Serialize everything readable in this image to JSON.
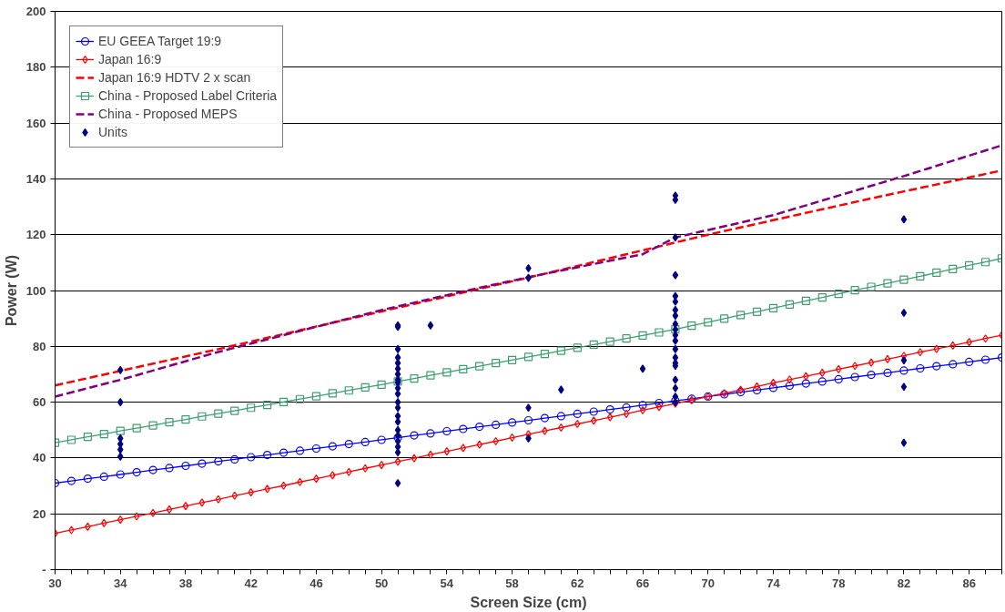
{
  "chart_data": {
    "type": "line",
    "xlabel": "Screen Size (cm)",
    "ylabel": "Power (W)",
    "xlim": [
      30,
      88
    ],
    "ylim": [
      0,
      200
    ],
    "xticks": [
      30,
      {
        "value": 31,
        "label": null
      },
      {
        "value": 32,
        "label": null
      },
      {
        "value": 33,
        "label": null
      },
      34,
      {
        "value": 35,
        "label": null
      },
      {
        "value": 36,
        "label": null
      },
      {
        "value": 37,
        "label": null
      },
      38,
      {
        "value": 39,
        "label": null
      },
      {
        "value": 40,
        "label": null
      },
      {
        "value": 41,
        "label": null
      },
      42,
      {
        "value": 43,
        "label": null
      },
      {
        "value": 44,
        "label": null
      },
      {
        "value": 45,
        "label": null
      },
      46,
      {
        "value": 47,
        "label": null
      },
      {
        "value": 48,
        "label": null
      },
      {
        "value": 49,
        "label": null
      },
      50,
      {
        "value": 51,
        "label": null
      },
      {
        "value": 52,
        "label": null
      },
      {
        "value": 53,
        "label": null
      },
      54,
      {
        "value": 55,
        "label": null
      },
      {
        "value": 56,
        "label": null
      },
      {
        "value": 57,
        "label": null
      },
      58,
      {
        "value": 59,
        "label": null
      },
      {
        "value": 60,
        "label": null
      },
      {
        "value": 61,
        "label": null
      },
      62,
      {
        "value": 63,
        "label": null
      },
      {
        "value": 64,
        "label": null
      },
      {
        "value": 65,
        "label": null
      },
      66,
      {
        "value": 67,
        "label": null
      },
      {
        "value": 68,
        "label": null
      },
      {
        "value": 69,
        "label": null
      },
      70,
      {
        "value": 71,
        "label": null
      },
      {
        "value": 72,
        "label": null
      },
      {
        "value": 73,
        "label": null
      },
      74,
      {
        "value": 75,
        "label": null
      },
      {
        "value": 76,
        "label": null
      },
      {
        "value": 77,
        "label": null
      },
      78,
      {
        "value": 79,
        "label": null
      },
      {
        "value": 80,
        "label": null
      },
      {
        "value": 81,
        "label": null
      },
      82,
      {
        "value": 83,
        "label": null
      },
      {
        "value": 84,
        "label": null
      },
      {
        "value": 85,
        "label": null
      },
      86,
      {
        "value": 87,
        "label": null
      },
      {
        "value": 88,
        "label": null
      }
    ],
    "yticks": [
      {
        "value": 0,
        "label": "-"
      },
      20,
      40,
      60,
      80,
      100,
      120,
      140,
      160,
      180,
      200
    ],
    "grid": "y",
    "legend": "top left",
    "x": [
      30,
      31,
      32,
      33,
      34,
      35,
      36,
      37,
      38,
      39,
      40,
      41,
      42,
      43,
      44,
      45,
      46,
      47,
      48,
      49,
      50,
      51,
      52,
      53,
      54,
      55,
      56,
      57,
      58,
      59,
      60,
      61,
      62,
      63,
      64,
      65,
      66,
      67,
      68,
      69,
      70,
      71,
      72,
      73,
      74,
      75,
      76,
      77,
      78,
      79,
      80,
      81,
      82,
      83,
      84,
      85,
      86,
      87,
      88
    ],
    "series": [
      {
        "name": "EU GEEA Target 19:9",
        "color": "#0000ff",
        "marker": "circle",
        "line_style": "solid",
        "values": [
          31.0,
          31.8,
          32.6,
          33.3,
          34.1,
          34.9,
          35.7,
          36.4,
          37.2,
          38.0,
          38.8,
          39.5,
          40.3,
          41.1,
          41.9,
          42.6,
          43.4,
          44.2,
          45.0,
          45.7,
          46.5,
          47.3,
          48.1,
          48.8,
          49.6,
          50.4,
          51.2,
          51.9,
          52.7,
          53.5,
          54.3,
          55.0,
          55.8,
          56.6,
          57.4,
          58.1,
          58.9,
          59.7,
          60.5,
          61.2,
          62.0,
          62.8,
          63.6,
          64.3,
          65.1,
          65.9,
          66.7,
          67.4,
          68.2,
          69.0,
          69.8,
          70.5,
          71.3,
          72.1,
          72.9,
          73.6,
          74.4,
          75.2,
          76.0
        ]
      },
      {
        "name": "Japan 16:9",
        "color": "#ff0000",
        "marker": "diamond",
        "line_style": "solid",
        "values": [
          13.0,
          14.2,
          15.4,
          16.7,
          17.9,
          19.1,
          20.3,
          21.6,
          22.8,
          24.0,
          25.2,
          26.5,
          27.7,
          28.9,
          30.1,
          31.4,
          32.6,
          33.8,
          35.0,
          36.3,
          37.5,
          38.7,
          39.9,
          41.2,
          42.4,
          43.6,
          44.8,
          46.0,
          47.3,
          48.5,
          49.7,
          50.9,
          52.2,
          53.4,
          54.6,
          55.8,
          57.1,
          58.3,
          59.5,
          60.7,
          62.0,
          63.2,
          64.4,
          65.6,
          66.9,
          68.1,
          69.3,
          70.5,
          71.8,
          73.0,
          74.2,
          75.4,
          76.6,
          77.9,
          79.1,
          80.3,
          81.5,
          82.8,
          84.0
        ]
      },
      {
        "name": "Japan 16:9 HDTV 2 x scan",
        "color": "#ff0000",
        "marker": "none",
        "line_style": "dashed",
        "x": [
          30,
          40,
          50,
          60,
          70,
          80,
          88
        ],
        "values": [
          66,
          79,
          92.5,
          106,
          120,
          133,
          143
        ]
      },
      {
        "name": "China - Proposed Label Criteria",
        "color": "#3c9f6e",
        "marker": "square",
        "line_style": "solid",
        "values": [
          45.5,
          46.5,
          47.6,
          48.6,
          49.7,
          50.7,
          51.7,
          52.8,
          53.8,
          54.9,
          55.9,
          56.9,
          58.0,
          59.0,
          60.1,
          61.1,
          62.1,
          63.2,
          64.2,
          65.3,
          66.3,
          67.4,
          68.5,
          69.6,
          70.7,
          71.8,
          72.9,
          74.0,
          75.1,
          76.2,
          77.3,
          78.4,
          79.5,
          80.6,
          81.7,
          82.8,
          83.9,
          85.0,
          86.1,
          87.4,
          88.6,
          89.9,
          91.2,
          92.4,
          93.7,
          95.0,
          96.3,
          97.5,
          98.8,
          100.1,
          101.3,
          102.6,
          103.9,
          105.1,
          106.4,
          107.7,
          109.0,
          110.2,
          111.5
        ]
      },
      {
        "name": "China - Proposed MEPS",
        "color": "#800080",
        "marker": "none",
        "line_style": "dashed",
        "x": [
          30,
          34,
          40,
          50,
          56,
          60,
          66,
          68,
          74,
          82,
          88
        ],
        "values": [
          62,
          68,
          78,
          93,
          101,
          106,
          113,
          119,
          127,
          141,
          152
        ]
      },
      {
        "name": "Units",
        "type": "scatter",
        "color": "#000080",
        "marker": "diamond",
        "x": [
          34,
          34,
          34,
          34,
          34,
          34,
          51,
          51,
          51,
          51,
          51,
          51,
          51,
          51,
          51,
          51,
          51,
          51,
          51,
          51,
          51,
          51,
          51,
          51,
          51,
          51,
          51,
          53,
          59,
          59,
          59,
          59,
          61,
          66,
          68,
          68,
          68,
          68,
          68,
          68,
          68,
          68,
          68,
          68,
          68,
          68,
          68,
          68,
          68,
          68,
          68,
          68,
          68,
          68,
          82,
          82,
          82,
          82,
          82
        ],
        "values": [
          71.5,
          60,
          47,
          45,
          43,
          40.5,
          87.5,
          87,
          79,
          76,
          74,
          72,
          70,
          68,
          67,
          65,
          63,
          60,
          58,
          55,
          53,
          50,
          48,
          46,
          44,
          42,
          31,
          87.5,
          108,
          104.5,
          58,
          47,
          64.5,
          72,
          134,
          132.5,
          119,
          105.5,
          98,
          96,
          93,
          91,
          88,
          86,
          84,
          82,
          79,
          76,
          74,
          73,
          68,
          65,
          62,
          60,
          125.5,
          92,
          75,
          65.5,
          45.5
        ]
      }
    ]
  }
}
